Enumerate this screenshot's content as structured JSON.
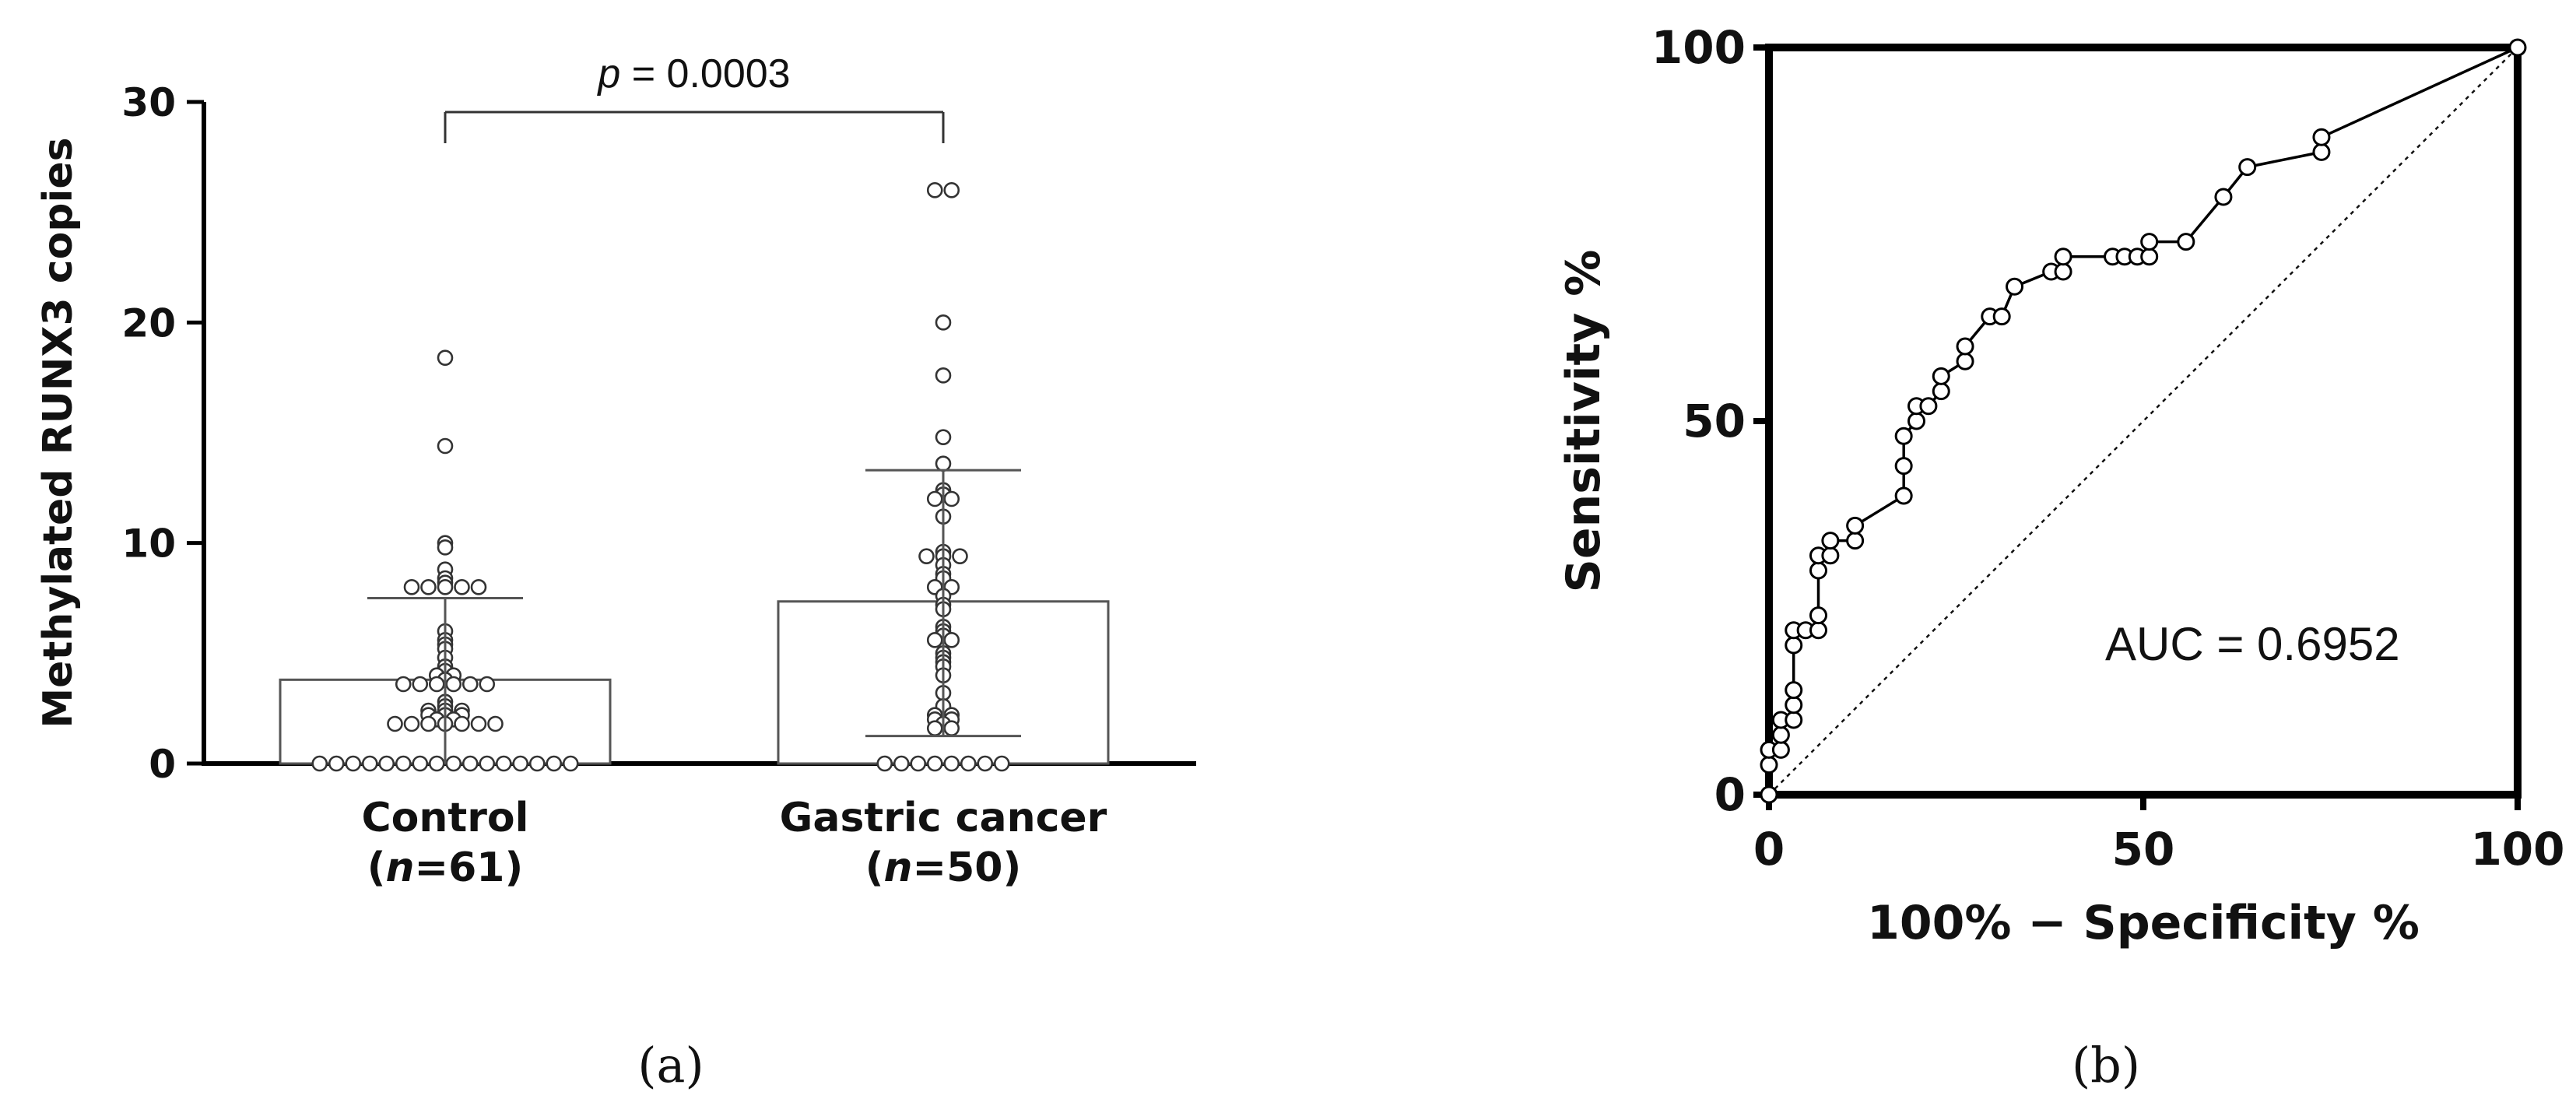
{
  "chart_data": [
    {
      "type": "scatter",
      "subtype": "dot-plot with bar (mean) and SD error bars",
      "panel_label": "(a)",
      "ylabel": "Methylated RUNX3 copies",
      "ylim": [
        0,
        30
      ],
      "yticks": [
        "0",
        "10",
        "20",
        "30"
      ],
      "categories": [
        {
          "name": "Control",
          "n_label": "n",
          "n_rest": "=61",
          "bar_value": 3.8,
          "sd_upper": 7.5,
          "sd_lower": 0
        },
        {
          "name": "Gastric cancer",
          "n_label": "n",
          "n_rest": "=50",
          "bar_value": 7.35,
          "sd_upper": 13.3,
          "sd_lower": 1.25
        }
      ],
      "significance": {
        "p_label": "p",
        "p_text": " = 0.0003"
      },
      "series": [
        {
          "category": "Control",
          "values": [
            18.4,
            14.4,
            10.0,
            9.8,
            8.8,
            8.4,
            8.2,
            8.0,
            8.0,
            8.0,
            8.0,
            8.0,
            6.0,
            5.6,
            5.4,
            5.2,
            4.8,
            4.4,
            4.2,
            4.0,
            4.0,
            3.8,
            3.6,
            3.6,
            3.6,
            3.6,
            3.6,
            3.6,
            2.8,
            2.6,
            2.4,
            2.4,
            2.4,
            2.2,
            2.2,
            2.2,
            2.0,
            2.0,
            1.8,
            1.8,
            1.8,
            1.8,
            1.8,
            1.8,
            1.8,
            0,
            0,
            0,
            0,
            0,
            0,
            0,
            0,
            0,
            0,
            0,
            0,
            0,
            0,
            0,
            0
          ]
        },
        {
          "category": "Gastric cancer",
          "values": [
            26.0,
            26.0,
            20.0,
            17.6,
            14.8,
            13.6,
            12.4,
            12.2,
            12.0,
            12.0,
            11.2,
            9.6,
            9.4,
            9.4,
            9.4,
            9.0,
            8.6,
            8.4,
            8.0,
            8.0,
            7.6,
            7.2,
            7.0,
            6.2,
            6.0,
            5.8,
            5.6,
            5.6,
            5.0,
            4.8,
            4.6,
            4.4,
            4.0,
            3.2,
            2.6,
            2.2,
            2.2,
            2.0,
            2.0,
            1.8,
            1.6,
            1.6,
            0,
            0,
            0,
            0,
            0,
            0,
            0,
            0
          ]
        }
      ]
    },
    {
      "type": "line",
      "subtype": "ROC curve",
      "panel_label": "(b)",
      "xlabel": "100% − Specificity %",
      "ylabel": "Sensitivity %",
      "xlim": [
        0,
        100
      ],
      "ylim": [
        0,
        100
      ],
      "xticks": [
        "0",
        "50",
        "100"
      ],
      "yticks": [
        "0",
        "50",
        "100"
      ],
      "annotation": "AUC = 0.6952",
      "reference_line": "dotted diagonal",
      "series": [
        {
          "x": [
            0,
            0,
            0,
            1.6,
            1.6,
            1.6,
            3.3,
            3.3,
            3.3,
            3.3,
            3.3,
            4.9,
            6.6,
            6.6,
            6.6,
            6.6,
            8.2,
            8.2,
            11.5,
            11.5,
            18.0,
            18.0,
            18.0,
            19.7,
            19.7,
            21.3,
            23.0,
            23.0,
            26.2,
            26.2,
            29.5,
            31.1,
            32.8,
            37.7,
            39.3,
            39.3,
            45.9,
            47.5,
            49.2,
            50.8,
            50.8,
            55.7,
            60.7,
            63.9,
            73.8,
            73.8,
            100
          ],
          "y": [
            0,
            4,
            6,
            6,
            8,
            10,
            10,
            12,
            14,
            20,
            22,
            22,
            22,
            24,
            30,
            32,
            32,
            34,
            34,
            36,
            40,
            44,
            48,
            50,
            52,
            52,
            54,
            56,
            58,
            60,
            64,
            64,
            68,
            70,
            70,
            72,
            72,
            72,
            72,
            72,
            74,
            74,
            80,
            84,
            86,
            88,
            100
          ]
        }
      ]
    }
  ]
}
